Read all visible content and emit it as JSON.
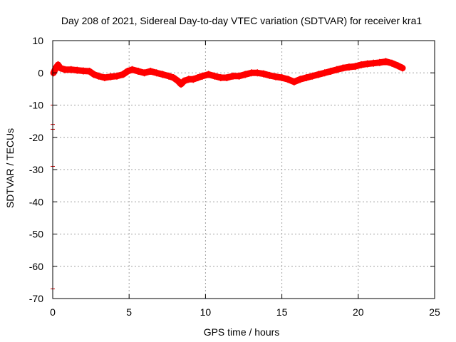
{
  "chart_data": {
    "type": "line",
    "title": "Day 208 of 2021, Sidereal Day-to-day VTEC variation (SDTVAR) for receiver kra1",
    "xlabel": "GPS time / hours",
    "ylabel": "SDTVAR / TECUs",
    "xlim": [
      0,
      25
    ],
    "ylim": [
      -70,
      10
    ],
    "xticks": [
      0,
      5,
      10,
      15,
      20,
      25
    ],
    "yticks": [
      -70,
      -60,
      -50,
      -40,
      -30,
      -20,
      -10,
      0,
      10
    ],
    "xtick_labels": [
      "0",
      "5",
      "10",
      "15",
      "20",
      "25"
    ],
    "ytick_labels": [
      "-70",
      "-60",
      "-50",
      "-40",
      "-30",
      "-20",
      "-10",
      "0",
      "10"
    ],
    "grid": true,
    "legend": "none",
    "series": [
      {
        "name": "SDTVAR kra1",
        "color": "#ff0000",
        "x": [
          0.05,
          0.2,
          0.35,
          0.5,
          0.8,
          1.2,
          1.6,
          2.0,
          2.4,
          2.7,
          3.0,
          3.4,
          3.8,
          4.2,
          4.6,
          4.9,
          5.2,
          5.6,
          6.0,
          6.4,
          6.8,
          7.2,
          7.6,
          7.9,
          8.2,
          8.4,
          8.6,
          8.9,
          9.2,
          9.5,
          9.8,
          10.2,
          10.6,
          11.0,
          11.4,
          11.8,
          12.2,
          12.6,
          13.0,
          13.4,
          13.8,
          14.2,
          14.6,
          15.0,
          15.4,
          15.8,
          16.2,
          16.6,
          17.0,
          17.4,
          17.8,
          18.2,
          18.6,
          19.0,
          19.4,
          19.8,
          20.2,
          20.6,
          21.0,
          21.4,
          21.8,
          22.2,
          22.6,
          22.9
        ],
        "y": [
          0.0,
          1.5,
          2.5,
          1.5,
          1.0,
          1.0,
          0.8,
          0.6,
          0.5,
          -0.5,
          -1.0,
          -1.5,
          -1.2,
          -1.0,
          -0.5,
          0.5,
          1.0,
          0.5,
          0.0,
          0.5,
          0.0,
          -0.5,
          -1.0,
          -1.5,
          -2.5,
          -3.5,
          -2.5,
          -2.0,
          -2.0,
          -1.5,
          -1.0,
          -0.5,
          -1.0,
          -1.5,
          -1.5,
          -1.0,
          -1.0,
          -0.5,
          0.0,
          0.0,
          -0.3,
          -0.8,
          -1.2,
          -1.5,
          -2.0,
          -2.8,
          -2.0,
          -1.5,
          -1.0,
          -0.5,
          0.0,
          0.5,
          1.0,
          1.5,
          1.8,
          2.0,
          2.5,
          2.8,
          3.0,
          3.2,
          3.5,
          3.0,
          2.2,
          1.5
        ]
      }
    ],
    "outliers": [
      {
        "x": 0,
        "y": -10
      },
      {
        "x": 0,
        "y": -16
      },
      {
        "x": 0,
        "y": -17.5
      },
      {
        "x": 0,
        "y": -29
      },
      {
        "x": 0,
        "y": -67
      }
    ]
  }
}
